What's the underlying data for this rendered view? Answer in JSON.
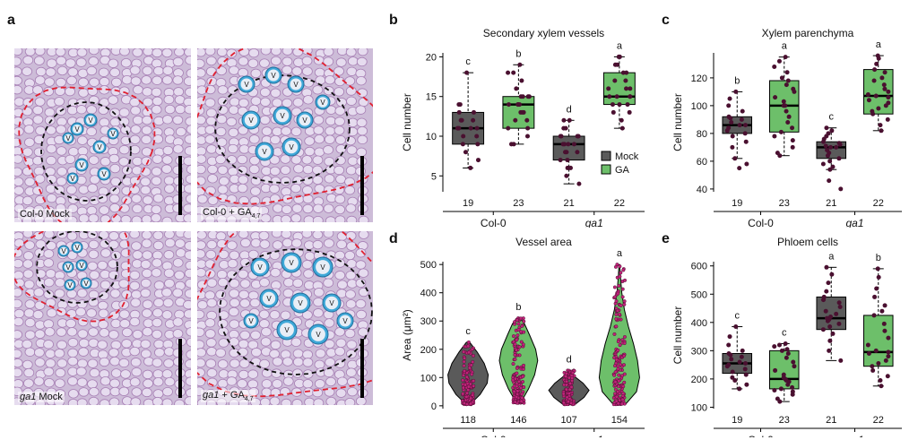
{
  "panel_letters": {
    "a": "a",
    "b": "b",
    "c": "c",
    "d": "d",
    "e": "e"
  },
  "micrographs": {
    "col_mock": "Col-0 Mock",
    "col_ga_prefix": "Col-0 + GA",
    "col_ga_sub": "4,7",
    "ga1_mock_italic": "ga1",
    "ga1_mock_rest": " Mock",
    "ga1_ga_italic": "ga1",
    "ga1_ga_rest": " + GA",
    "ga1_ga_sub": "4,7",
    "vessel_letter": "V"
  },
  "colors": {
    "mock": "#5a5a5a",
    "ga": "#6dbf6a",
    "point": "#4a1030",
    "point_violin": "#c0237a"
  },
  "legend": {
    "mock": "Mock",
    "ga": "GA"
  },
  "group_labels": {
    "col0": "Col-0",
    "ga1": "ga1"
  },
  "chart_data": [
    {
      "id": "b",
      "type": "box",
      "title": "Secondary xylem vessels",
      "ylabel": "Cell number",
      "ylim": [
        3,
        20.5
      ],
      "yticks": [
        5,
        10,
        15,
        20
      ],
      "groups": [
        {
          "n": "19",
          "letter": "c",
          "treatment": "mock",
          "min": 6,
          "q1": 9,
          "median": 11,
          "q3": 13,
          "max": 18,
          "points": [
            6,
            7,
            8,
            9,
            9,
            10,
            10,
            11,
            11,
            11,
            11,
            12,
            12,
            12,
            13,
            13,
            14,
            14,
            18
          ]
        },
        {
          "n": "23",
          "letter": "b",
          "treatment": "ga",
          "min": 9,
          "q1": 11,
          "median": 14,
          "q3": 15,
          "max": 19,
          "points": [
            9,
            9,
            10,
            11,
            11,
            12,
            12,
            13,
            13,
            13,
            14,
            14,
            14,
            14,
            15,
            15,
            15,
            15,
            16,
            17,
            18,
            18,
            19
          ]
        },
        {
          "n": "21",
          "letter": "d",
          "treatment": "mock",
          "min": 4,
          "q1": 7,
          "median": 9,
          "q3": 10,
          "max": 12,
          "points": [
            4,
            5,
            6,
            6,
            7,
            7,
            8,
            8,
            8,
            9,
            9,
            9,
            9,
            10,
            10,
            10,
            10,
            11,
            11,
            12,
            12
          ]
        },
        {
          "n": "22",
          "letter": "a",
          "treatment": "ga",
          "min": 11,
          "q1": 14,
          "median": 15,
          "q3": 18,
          "max": 20,
          "points": [
            11,
            12,
            13,
            13,
            14,
            14,
            14,
            15,
            15,
            15,
            15,
            16,
            16,
            16,
            17,
            17,
            18,
            18,
            19,
            19,
            20,
            20
          ]
        }
      ]
    },
    {
      "id": "c",
      "type": "box",
      "title": "Xylem parenchyma",
      "ylabel": "Cell number",
      "ylim": [
        38,
        138
      ],
      "yticks": [
        40,
        60,
        80,
        100,
        120
      ],
      "groups": [
        {
          "n": "19",
          "letter": "b",
          "treatment": "mock",
          "min": 62,
          "q1": 80,
          "median": 86,
          "q3": 92,
          "max": 110,
          "points": [
            55,
            58,
            62,
            70,
            74,
            78,
            80,
            82,
            84,
            86,
            86,
            88,
            90,
            91,
            92,
            96,
            100,
            105,
            110
          ]
        },
        {
          "n": "23",
          "letter": "a",
          "treatment": "ga",
          "min": 64,
          "q1": 81,
          "median": 100,
          "q3": 118,
          "max": 135,
          "points": [
            64,
            66,
            70,
            75,
            78,
            81,
            84,
            88,
            92,
            96,
            100,
            100,
            103,
            106,
            110,
            112,
            115,
            118,
            120,
            124,
            128,
            132,
            135
          ]
        },
        {
          "n": "21",
          "letter": "c",
          "treatment": "mock",
          "min": 54,
          "q1": 62,
          "median": 70,
          "q3": 74,
          "max": 84,
          "points": [
            40,
            46,
            54,
            56,
            58,
            60,
            62,
            64,
            66,
            68,
            70,
            70,
            71,
            72,
            73,
            74,
            76,
            78,
            80,
            82,
            84
          ]
        },
        {
          "n": "22",
          "letter": "a",
          "treatment": "ga",
          "min": 82,
          "q1": 94,
          "median": 107,
          "q3": 126,
          "max": 136,
          "points": [
            82,
            86,
            90,
            94,
            96,
            98,
            100,
            102,
            104,
            106,
            107,
            108,
            110,
            112,
            115,
            118,
            120,
            124,
            126,
            130,
            134,
            136
          ]
        }
      ]
    },
    {
      "id": "d",
      "type": "violin",
      "title": "Vessel area",
      "ylabel": "Area (μm²)",
      "ylim": [
        -10,
        510
      ],
      "yticks": [
        0,
        100,
        200,
        300,
        400,
        500
      ],
      "groups": [
        {
          "n": "118",
          "letter": "c",
          "treatment": "mock",
          "min": 5,
          "max": 225,
          "density": [
            [
              5,
              0.1
            ],
            [
              40,
              0.6
            ],
            [
              80,
              0.95
            ],
            [
              110,
              1.0
            ],
            [
              150,
              0.8
            ],
            [
              190,
              0.45
            ],
            [
              225,
              0.08
            ]
          ]
        },
        {
          "n": "146",
          "letter": "b",
          "treatment": "ga",
          "min": 10,
          "max": 310,
          "density": [
            [
              10,
              0.1
            ],
            [
              60,
              0.5
            ],
            [
              110,
              0.8
            ],
            [
              160,
              0.95
            ],
            [
              200,
              0.85
            ],
            [
              250,
              0.55
            ],
            [
              290,
              0.3
            ],
            [
              310,
              0.08
            ]
          ]
        },
        {
          "n": "107",
          "letter": "d",
          "treatment": "mock",
          "min": 5,
          "max": 125,
          "density": [
            [
              5,
              0.3
            ],
            [
              30,
              0.75
            ],
            [
              55,
              1.0
            ],
            [
              80,
              0.7
            ],
            [
              105,
              0.25
            ],
            [
              125,
              0.05
            ]
          ]
        },
        {
          "n": "154",
          "letter": "a",
          "treatment": "ga",
          "min": 5,
          "max": 500,
          "density": [
            [
              5,
              0.3
            ],
            [
              50,
              0.85
            ],
            [
              100,
              1.0
            ],
            [
              160,
              0.9
            ],
            [
              220,
              0.7
            ],
            [
              280,
              0.45
            ],
            [
              340,
              0.25
            ],
            [
              400,
              0.12
            ],
            [
              460,
              0.05
            ],
            [
              500,
              0.02
            ]
          ]
        }
      ]
    },
    {
      "id": "e",
      "type": "box",
      "title": "Phloem cells",
      "ylabel": "Cell number",
      "ylim": [
        95,
        615
      ],
      "yticks": [
        100,
        200,
        300,
        400,
        500,
        600
      ],
      "groups": [
        {
          "n": "19",
          "letter": "c",
          "treatment": "mock",
          "min": 165,
          "q1": 220,
          "median": 255,
          "q3": 290,
          "max": 385,
          "points": [
            165,
            180,
            195,
            205,
            215,
            225,
            235,
            245,
            250,
            255,
            260,
            270,
            278,
            285,
            290,
            300,
            320,
            350,
            385
          ]
        },
        {
          "n": "23",
          "letter": "c",
          "treatment": "ga",
          "min": 120,
          "q1": 165,
          "median": 200,
          "q3": 300,
          "max": 325,
          "points": [
            120,
            130,
            145,
            155,
            160,
            165,
            170,
            180,
            190,
            195,
            200,
            205,
            215,
            230,
            245,
            260,
            275,
            290,
            300,
            305,
            315,
            320,
            325
          ]
        },
        {
          "n": "21",
          "letter": "a",
          "treatment": "mock",
          "min": 265,
          "q1": 375,
          "median": 415,
          "q3": 490,
          "max": 595,
          "points": [
            265,
            300,
            335,
            360,
            375,
            385,
            395,
            405,
            410,
            415,
            420,
            430,
            440,
            455,
            470,
            480,
            490,
            510,
            540,
            570,
            595
          ]
        },
        {
          "n": "22",
          "letter": "b",
          "treatment": "ga",
          "min": 175,
          "q1": 245,
          "median": 295,
          "q3": 425,
          "max": 590,
          "points": [
            175,
            195,
            210,
            230,
            245,
            255,
            265,
            280,
            290,
            295,
            300,
            320,
            345,
            370,
            395,
            425,
            440,
            460,
            490,
            520,
            560,
            590
          ]
        }
      ]
    }
  ]
}
